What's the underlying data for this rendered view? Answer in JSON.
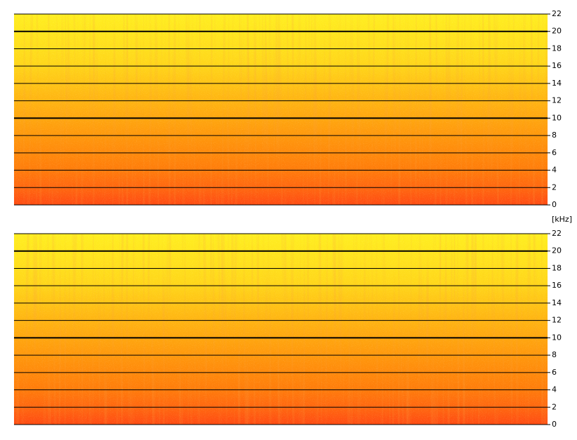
{
  "chart_data": [
    {
      "type": "spectrogram",
      "ylabel": "[kHz]",
      "ylim": [
        0,
        22
      ],
      "yticks": [
        0,
        2,
        4,
        6,
        8,
        10,
        12,
        14,
        16,
        18,
        20,
        22
      ],
      "major_gridlines": [
        10,
        20
      ],
      "grid": true
    },
    {
      "type": "spectrogram",
      "ylim": [
        0,
        22
      ],
      "yticks": [
        0,
        2,
        4,
        6,
        8,
        10,
        12,
        14,
        16,
        18,
        20,
        22
      ],
      "major_gridlines": [
        10,
        20
      ],
      "grid": true
    }
  ]
}
